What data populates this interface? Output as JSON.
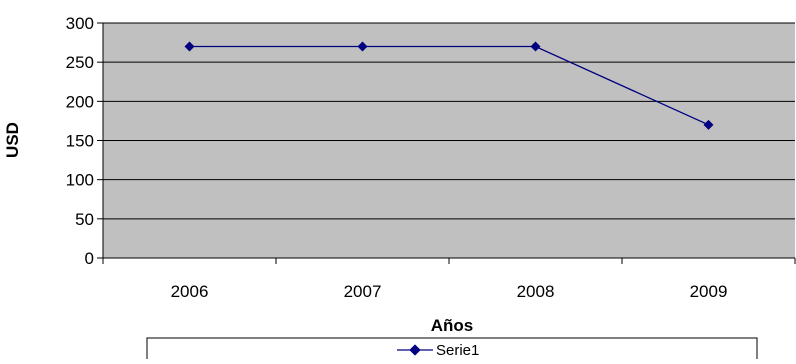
{
  "chart_data": {
    "type": "line",
    "categories": [
      "2006",
      "2007",
      "2008",
      "2009"
    ],
    "series": [
      {
        "name": "Serie1",
        "values": [
          270,
          270,
          270,
          170
        ]
      }
    ],
    "xlabel": "Años",
    "ylabel": "USD",
    "ylim": [
      0,
      300
    ],
    "yticks": [
      0,
      50,
      100,
      150,
      200,
      250,
      300
    ],
    "grid": "horizontal",
    "legend_position": "bottom",
    "colors": {
      "plot_background": "#c0c0c0",
      "series_line": "#000080",
      "gridline": "#000000"
    }
  }
}
